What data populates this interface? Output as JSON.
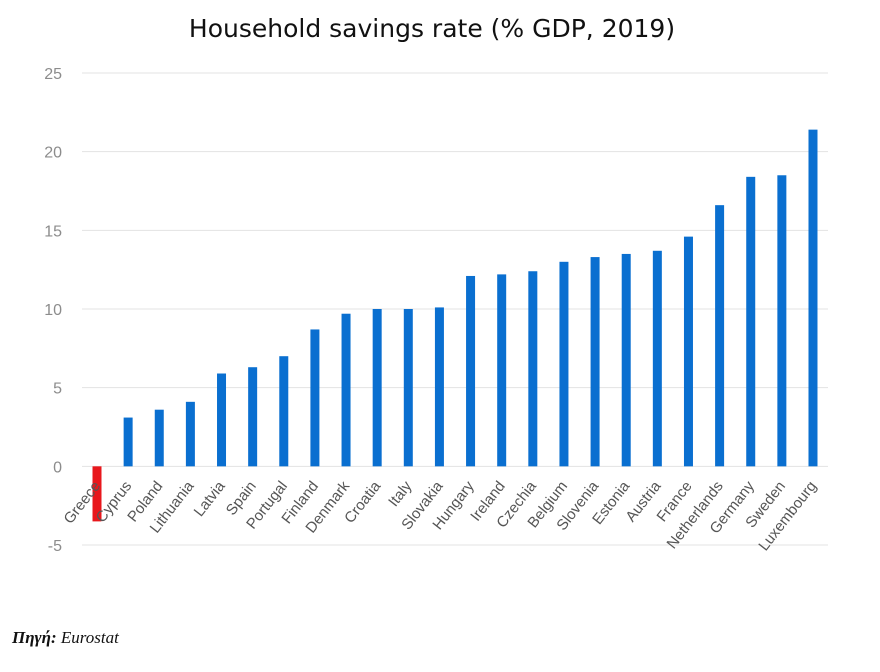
{
  "chart_data": {
    "type": "bar",
    "title": "Household savings rate (% GDP, 2019)",
    "categories": [
      "Greece",
      "Cyprus",
      "Poland",
      "Lithuania",
      "Latvia",
      "Spain",
      "Portugal",
      "Finland",
      "Denmark",
      "Croatia",
      "Italy",
      "Slovakia",
      "Hungary",
      "Ireland",
      "Czechia",
      "Belgium",
      "Slovenia",
      "Estonia",
      "Austria",
      "France",
      "Netherlands",
      "Germany",
      "Sweden",
      "Luxembourg"
    ],
    "values": [
      -3.5,
      3.1,
      3.6,
      4.1,
      5.9,
      6.3,
      7.0,
      8.7,
      9.7,
      10.0,
      10.0,
      10.1,
      12.1,
      12.2,
      12.4,
      13.0,
      13.3,
      13.5,
      13.7,
      14.6,
      16.6,
      18.4,
      18.5,
      21.4
    ],
    "ylim": [
      -5,
      25
    ],
    "yticks": [
      -5,
      0,
      5,
      10,
      15,
      20,
      25
    ],
    "grid": true,
    "colors": {
      "default": "#0a6fd0",
      "highlight": "#e8171c",
      "grid": "#e3e3e3"
    },
    "highlight_category": "Greece"
  },
  "source": {
    "label": "Πηγή:",
    "value": "Eurostat"
  }
}
